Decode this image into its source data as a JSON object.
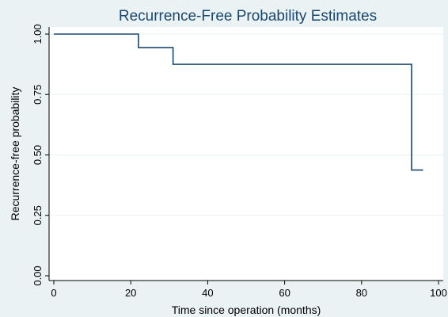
{
  "chart_data": {
    "type": "line",
    "step": true,
    "title": "Recurrence-Free Probability Estimates",
    "xlabel": "Time since operation (months)",
    "ylabel": "Recurrence-free probability",
    "xlim": [
      0,
      100
    ],
    "ylim": [
      0,
      1
    ],
    "x_ticks": [
      0,
      20,
      40,
      60,
      80,
      100
    ],
    "x_tick_labels": [
      "0",
      "20",
      "40",
      "60",
      "80",
      "100"
    ],
    "y_ticks": [
      0,
      0.25,
      0.5,
      0.75,
      1
    ],
    "y_tick_labels": [
      "0.00",
      "0.25",
      "0.50",
      "0.75",
      "1.00"
    ],
    "grid": "horizontal",
    "series": [
      {
        "x": [
          0,
          22,
          31,
          93,
          96
        ],
        "y": [
          1.0,
          0.944,
          0.875,
          0.4375,
          0.4375
        ]
      }
    ],
    "colors": {
      "line": "#1a476f",
      "plot_background": "#ffffff",
      "figure_background": "#eaf2f3",
      "grid": "#eaf2f3"
    }
  }
}
